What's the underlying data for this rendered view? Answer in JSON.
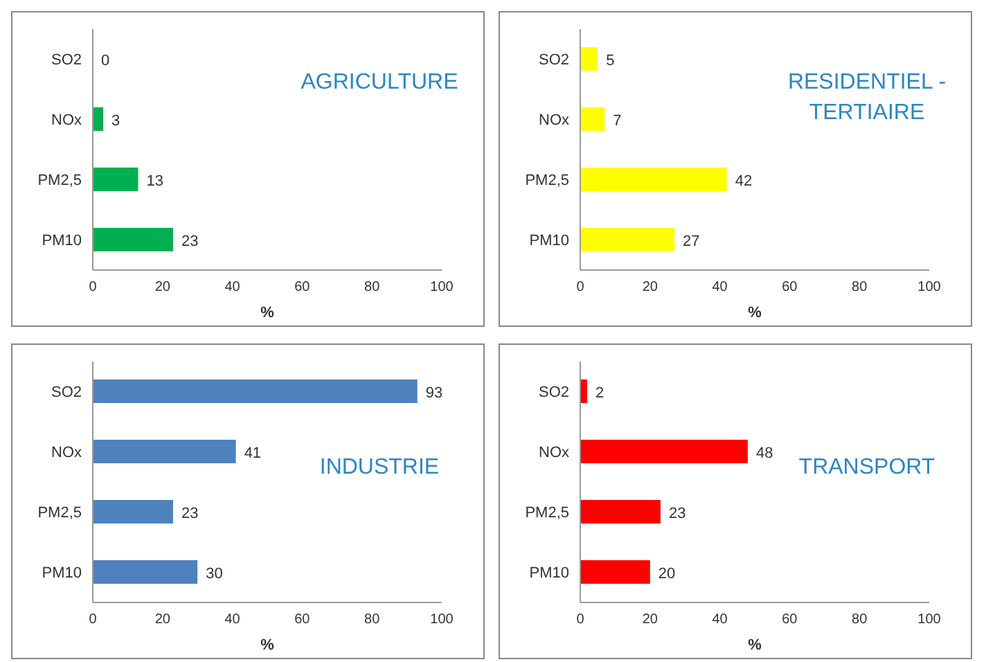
{
  "chart_data": [
    {
      "type": "bar",
      "orientation": "horizontal",
      "title": "AGRICULTURE",
      "categories": [
        "SO2",
        "NOx",
        "PM2,5",
        "PM10"
      ],
      "values": [
        0,
        3,
        13,
        23
      ],
      "color": "#00b050",
      "xlim": [
        0,
        100
      ],
      "xticks": [
        0,
        20,
        40,
        60,
        80,
        100
      ],
      "xlabel": "%",
      "data_labels": true,
      "grid": false,
      "legend": false
    },
    {
      "type": "bar",
      "orientation": "horizontal",
      "title": "RESIDENTIEL - TERTIAIRE",
      "categories": [
        "SO2",
        "NOx",
        "PM2,5",
        "PM10"
      ],
      "values": [
        5,
        7,
        42,
        27
      ],
      "color": "#ffff00",
      "xlim": [
        0,
        100
      ],
      "xticks": [
        0,
        20,
        40,
        60,
        80,
        100
      ],
      "xlabel": "%",
      "data_labels": true,
      "grid": false,
      "legend": false
    },
    {
      "type": "bar",
      "orientation": "horizontal",
      "title": "INDUSTRIE",
      "categories": [
        "SO2",
        "NOx",
        "PM2,5",
        "PM10"
      ],
      "values": [
        93,
        41,
        23,
        30
      ],
      "color": "#4f81bd",
      "xlim": [
        0,
        100
      ],
      "xticks": [
        0,
        20,
        40,
        60,
        80,
        100
      ],
      "xlabel": "%",
      "data_labels": true,
      "grid": false,
      "legend": false
    },
    {
      "type": "bar",
      "orientation": "horizontal",
      "title": "TRANSPORT",
      "categories": [
        "SO2",
        "NOx",
        "PM2,5",
        "PM10"
      ],
      "values": [
        2,
        48,
        23,
        20
      ],
      "color": "#ff0000",
      "xlim": [
        0,
        100
      ],
      "xticks": [
        0,
        20,
        40,
        60,
        80,
        100
      ],
      "xlabel": "%",
      "data_labels": true,
      "grid": false,
      "legend": false
    }
  ]
}
